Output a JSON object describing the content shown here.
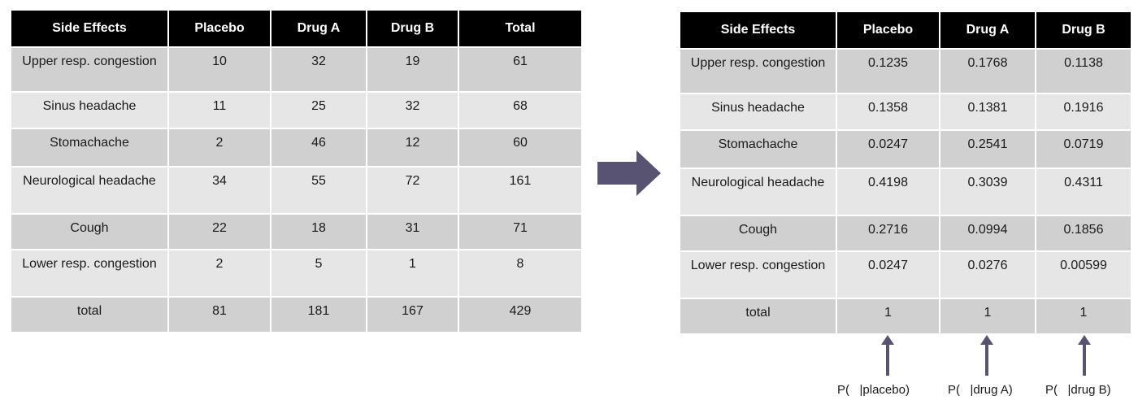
{
  "left_table": {
    "headers": [
      "Side Effects",
      "Placebo",
      "Drug A",
      "Drug B",
      "Total"
    ],
    "rows": [
      [
        "Upper resp. congestion",
        "10",
        "32",
        "19",
        "61"
      ],
      [
        "Sinus headache",
        "11",
        "25",
        "32",
        "68"
      ],
      [
        "Stomachache",
        "2",
        "46",
        "12",
        "60"
      ],
      [
        "Neurological headache",
        "34",
        "55",
        "72",
        "161"
      ],
      [
        "Cough",
        "22",
        "18",
        "31",
        "71"
      ],
      [
        "Lower resp. congestion",
        "2",
        "5",
        "1",
        "8"
      ],
      [
        "total",
        "81",
        "181",
        "167",
        "429"
      ]
    ]
  },
  "right_table": {
    "headers": [
      "Side Effects",
      "Placebo",
      "Drug A",
      "Drug B"
    ],
    "rows": [
      [
        "Upper resp. congestion",
        "0.1235",
        "0.1768",
        "0.1138"
      ],
      [
        "Sinus headache",
        "0.1358",
        "0.1381",
        "0.1916"
      ],
      [
        "Stomachache",
        "0.0247",
        "0.2541",
        "0.0719"
      ],
      [
        "Neurological headache",
        "0.4198",
        "0.3039",
        "0.4311"
      ],
      [
        "Cough",
        "0.2716",
        "0.0994",
        "0.1856"
      ],
      [
        "Lower resp. congestion",
        "0.0247",
        "0.0276",
        "0.00599"
      ],
      [
        "total",
        "1",
        "1",
        "1"
      ]
    ]
  },
  "probability_labels": [
    "P(   |placebo)",
    "P(   |drug A)",
    "P(   |drug B)"
  ],
  "colors": {
    "header_bg": "#000000",
    "header_text": "#ffffff",
    "row_dark": "#d0d0d0",
    "row_light": "#e6e6e6",
    "arrow": "#585372"
  },
  "icons": {
    "transform_arrow": "right-arrow-icon",
    "column_pointer": "up-arrow-icon"
  }
}
